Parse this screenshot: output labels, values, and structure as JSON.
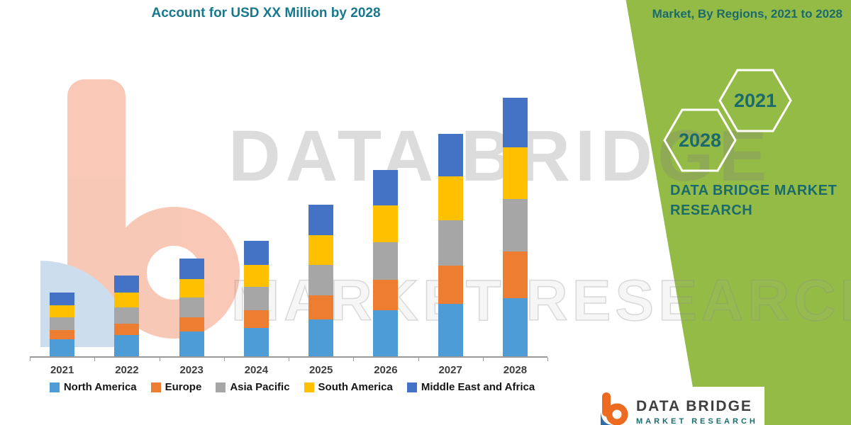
{
  "header": {
    "title": "Account for USD XX Million by 2028"
  },
  "green_panel": {
    "heading": "Market, By Regions, 2021 to 2028",
    "hexagon_back": "2028",
    "hexagon_front": "2021",
    "brand_line1": "DATA BRIDGE MARKET",
    "brand_line2": "RESEARCH",
    "green_color": "#95BB47",
    "teal_color": "#1C6B6B"
  },
  "watermark": {
    "line1": "DATA BRIDGE",
    "line2": "MARKET RESEARCH"
  },
  "footer_logo": {
    "brand": "DATA BRIDGE",
    "subbrand": "MARKET RESEARCH"
  },
  "chart_data": {
    "type": "bar",
    "stacked": true,
    "title": "Account for USD XX Million by 2028",
    "categories": [
      "2021",
      "2022",
      "2023",
      "2024",
      "2025",
      "2026",
      "2027",
      "2028"
    ],
    "series": [
      {
        "name": "North America",
        "color": "#4E9CD5",
        "values": [
          24,
          30,
          35,
          40,
          52,
          65,
          74,
          82
        ]
      },
      {
        "name": "Europe",
        "color": "#ED7D31",
        "values": [
          13,
          16,
          20,
          25,
          34,
          43,
          54,
          66
        ]
      },
      {
        "name": "Asia Pacific",
        "color": "#A6A6A6",
        "values": [
          18,
          23,
          28,
          33,
          43,
          53,
          64,
          74
        ]
      },
      {
        "name": "South America",
        "color": "#FFC000",
        "values": [
          17,
          21,
          26,
          31,
          42,
          52,
          62,
          73
        ]
      },
      {
        "name": "Middle East and Africa",
        "color": "#4472C4",
        "values": [
          18,
          24,
          29,
          34,
          43,
          50,
          60,
          70
        ]
      }
    ],
    "xlabel": "",
    "ylabel": "",
    "y_axis_visible": false,
    "values_unit": "relative index (values labeled as USD XX Million, not shown numerically)",
    "legend_position": "bottom",
    "grid": false
  }
}
